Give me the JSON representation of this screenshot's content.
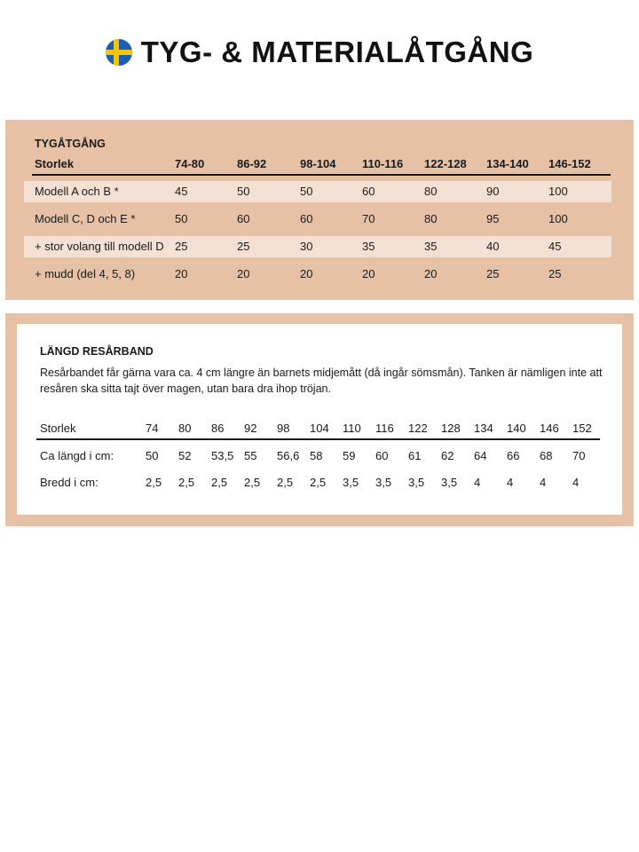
{
  "title": "TYG- & MATERIALÅTGÅNG",
  "flag_icon": "swedish-flag-icon",
  "colors": {
    "panel": "#e6c1a6",
    "stripe": "#f4e1d3",
    "flag_blue": "#1a5fb4",
    "flag_yellow": "#f6c500"
  },
  "fabric": {
    "heading": "TYGÅTGÅNG",
    "header": [
      "Storlek",
      "74-80",
      "86-92",
      "98-104",
      "110-116",
      "122-128",
      "134-140",
      "146-152"
    ],
    "rows": [
      [
        "Modell A och B *",
        "45",
        "50",
        "50",
        "60",
        "80",
        "90",
        "100"
      ],
      [
        "Modell C, D och E *",
        "50",
        "60",
        "60",
        "70",
        "80",
        "95",
        "100"
      ],
      [
        "+ stor volang till modell D",
        "25",
        "25",
        "30",
        "35",
        "35",
        "40",
        "45"
      ],
      [
        "+ mudd (del 4, 5, 8)",
        "20",
        "20",
        "20",
        "20",
        "20",
        "25",
        "25"
      ]
    ]
  },
  "elastic": {
    "heading": "LÄNGD RESÅRBAND",
    "paragraph_line1": "Resårbandet får gärna vara ca. 4 cm längre än barnets midjemått (då ingår sömsmån). Tanken är nämligen inte att",
    "paragraph_line2": "resåren ska sitta tajt över magen, utan bara dra ihop tröjan.",
    "header": [
      "Storlek",
      "74",
      "80",
      "86",
      "92",
      "98",
      "104",
      "110",
      "116",
      "122",
      "128",
      "134",
      "140",
      "146",
      "152"
    ],
    "rows": [
      [
        "Ca längd i cm:",
        "50",
        "52",
        "53,5",
        "55",
        "56,6",
        "58",
        "59",
        "60",
        "61",
        "62",
        "64",
        "66",
        "68",
        "70"
      ],
      [
        "Bredd i cm:",
        "2,5",
        "2,5",
        "2,5",
        "2,5",
        "2,5",
        "2,5",
        "3,5",
        "3,5",
        "3,5",
        "3,5",
        "4",
        "4",
        "4",
        "4"
      ]
    ]
  }
}
